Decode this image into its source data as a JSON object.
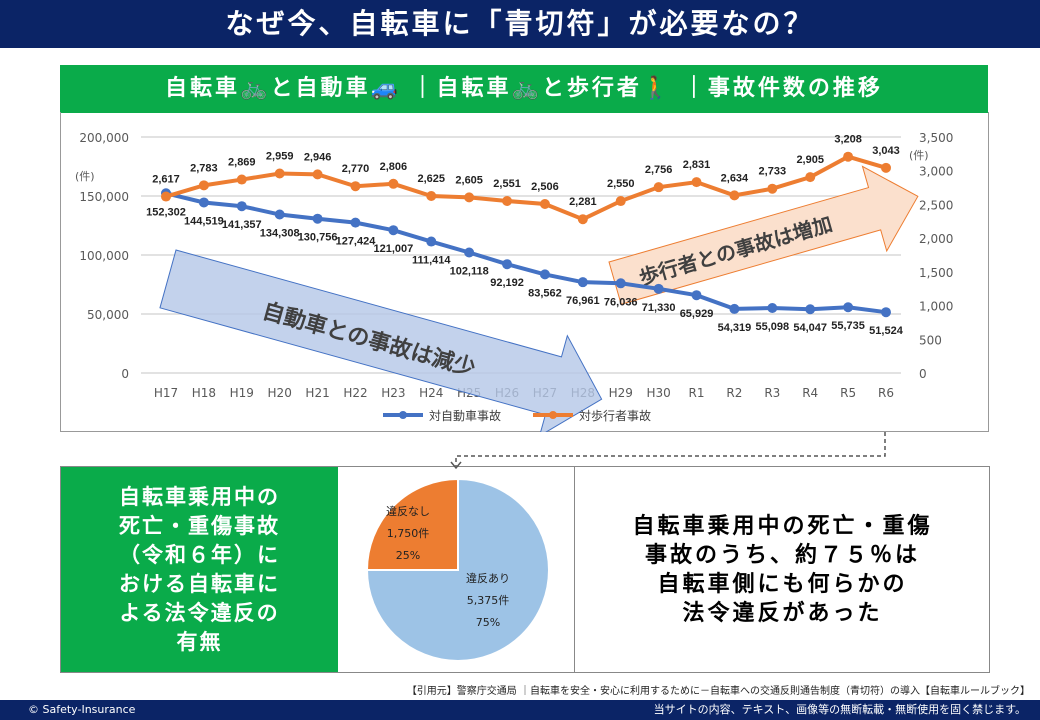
{
  "title": "なぜ今、自転車に「青切符」が必要なの？",
  "header": "自転車🚲と自動車🚙 ｜自転車🚲と歩行者🚶 ｜事故件数の推移",
  "chart_data": {
    "type": "line",
    "categories": [
      "H17",
      "H18",
      "H19",
      "H20",
      "H21",
      "H22",
      "H23",
      "H24",
      "H25",
      "H26",
      "H27",
      "H28",
      "H29",
      "H30",
      "R1",
      "R2",
      "R3",
      "R4",
      "R5",
      "R6"
    ],
    "series": [
      {
        "name": "対自動車事故",
        "axis": "left",
        "color": "#4472c4",
        "values": [
          152302,
          144519,
          141357,
          134308,
          130756,
          127424,
          121007,
          111414,
          102118,
          92192,
          83562,
          76961,
          76036,
          71330,
          65929,
          54319,
          55098,
          54047,
          55735,
          51524
        ]
      },
      {
        "name": "対歩行者事故",
        "axis": "right",
        "color": "#ed7d31",
        "values": [
          2617,
          2783,
          2869,
          2959,
          2946,
          2770,
          2806,
          2625,
          2605,
          2551,
          2506,
          2281,
          2550,
          2756,
          2831,
          2634,
          2733,
          2905,
          3208,
          3043
        ]
      }
    ],
    "left_axis": {
      "unit": "(件)",
      "range": [
        0,
        200000
      ],
      "ticks": [
        "0",
        "50,000",
        "100,000",
        "150,000",
        "200,000"
      ]
    },
    "right_axis": {
      "unit": "(件)",
      "range": [
        0,
        3500
      ],
      "ticks": [
        "0",
        "500",
        "1,000",
        "1,500",
        "2,000",
        "2,500",
        "3,000",
        "3,500"
      ]
    },
    "annotations": [
      "自動車との事故は減少",
      "歩行者との事故は増加"
    ],
    "legend": "bottom"
  },
  "pie_data": {
    "type": "pie",
    "slices": [
      {
        "label": "違反なし",
        "count": "1,750件",
        "pct": "25%",
        "value": 25,
        "color": "#ed7d31"
      },
      {
        "label": "違反あり",
        "count": "5,375件",
        "pct": "75%",
        "value": 75,
        "color": "#9dc3e6"
      }
    ]
  },
  "left_box": [
    "自転車乗用中の",
    "死亡・重傷事故",
    "（令和６年）に",
    "おける自転車に",
    "よる法令違反の",
    "有無"
  ],
  "message": [
    "自転車乗用中の死亡・重傷",
    "事故のうち、約７５％は",
    "自転車側にも何らかの",
    "法令違反があった"
  ],
  "source": "【引用元】警察庁交通局 ｜自転車を安全・安心に利用するために－自転車への交通反則通告制度（青切符）の導入【自転車ルールブック】",
  "footer": {
    "copyright": "© Safety-Insurance",
    "notice": "当サイトの内容、テキスト、画像等の無断転載・無断使用を固く禁じます。"
  },
  "watermark": "Safety-Insurance"
}
